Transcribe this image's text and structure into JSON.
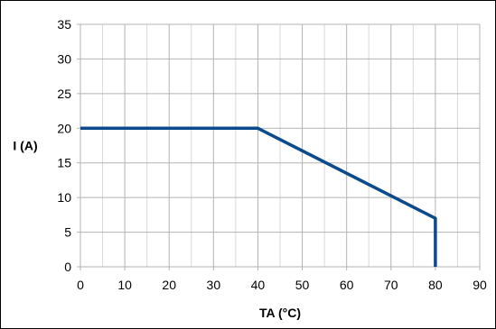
{
  "chart_data": {
    "type": "line",
    "title": "",
    "xlabel": "TA (°C)",
    "ylabel": "I (A)",
    "xlim": [
      0,
      90
    ],
    "ylim": [
      0,
      35
    ],
    "x_ticks": [
      0,
      10,
      20,
      30,
      40,
      50,
      60,
      70,
      80,
      90
    ],
    "y_ticks": [
      0,
      5,
      10,
      15,
      20,
      25,
      30,
      35
    ],
    "x_tick_labels": [
      "0",
      "10",
      "20",
      "30",
      "40",
      "50",
      "60",
      "70",
      "80",
      "90"
    ],
    "y_tick_labels": [
      "0",
      "5",
      "10",
      "15",
      "20",
      "25",
      "30",
      "35"
    ],
    "grid": {
      "major_x": 10,
      "minor_x": 5,
      "major_y": 5
    },
    "legend": "none",
    "series": [
      {
        "color": "#0b4a8b",
        "x": [
          0,
          40,
          80,
          80
        ],
        "y": [
          20,
          20,
          7,
          0
        ]
      }
    ]
  }
}
